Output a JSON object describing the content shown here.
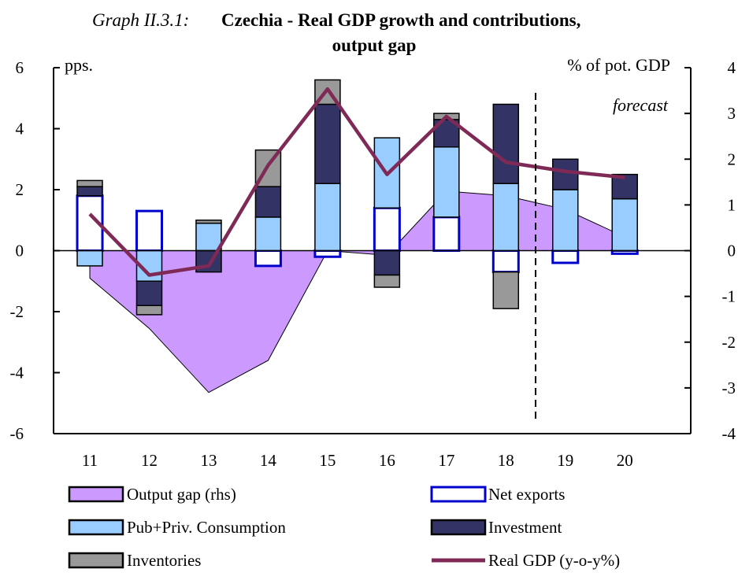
{
  "chart_data": {
    "type": "bar",
    "title_prefix": "Graph II.3.1:",
    "title_line1": "Czechia - Real GDP growth and contributions,",
    "title_line2": "output gap",
    "left_unit": "pps.",
    "right_unit": "% of pot. GDP",
    "forecast_label": "forecast",
    "categories": [
      "11",
      "12",
      "13",
      "14",
      "15",
      "16",
      "17",
      "18",
      "19",
      "20"
    ],
    "ylim_left": [
      -6,
      6
    ],
    "ylim_right": [
      -4,
      4
    ],
    "yticks_left": [
      "-6",
      "-4",
      "-2",
      "0",
      "2",
      "4",
      "6"
    ],
    "yticks_right": [
      "-4",
      "-3",
      "-2",
      "-1",
      "0",
      "1",
      "2",
      "3",
      "4"
    ],
    "forecast_after_category": "18",
    "legend": {
      "output_gap": "Output gap (rhs)",
      "net_exports": "Net exports",
      "consumption": "Pub+Priv. Consumption",
      "investment": "Investment",
      "inventories": "Inventories",
      "gdp": "Real GDP (y-o-y%)"
    },
    "colors": {
      "output_gap": "#cc99ff",
      "net_exports_border": "#0000cc",
      "consumption": "#99ccff",
      "investment": "#333366",
      "inventories": "#999999",
      "gdp": "#7f2a56"
    },
    "series": [
      {
        "key": "net_exports",
        "values": [
          1.8,
          1.3,
          0.0,
          -0.5,
          -0.2,
          1.4,
          1.1,
          -0.7,
          -0.4,
          -0.1
        ]
      },
      {
        "key": "consumption",
        "values": [
          -0.5,
          -1.0,
          0.9,
          1.1,
          2.2,
          2.3,
          2.3,
          2.2,
          2.0,
          1.7
        ]
      },
      {
        "key": "investment",
        "values": [
          0.3,
          -0.8,
          -0.7,
          1.0,
          2.6,
          -0.8,
          0.9,
          2.6,
          1.0,
          0.8
        ]
      },
      {
        "key": "inventories",
        "values": [
          0.2,
          -0.3,
          0.1,
          1.2,
          0.8,
          -0.4,
          0.2,
          -1.2,
          0.0,
          0.0
        ]
      },
      {
        "key": "gdp",
        "values": [
          1.2,
          -0.8,
          -0.5,
          2.8,
          5.3,
          2.5,
          4.4,
          2.9,
          2.6,
          2.4
        ]
      },
      {
        "key": "output_gap",
        "values": [
          -0.6,
          -1.7,
          -3.1,
          -2.4,
          0.0,
          -0.1,
          1.3,
          1.2,
          0.9,
          0.3
        ]
      }
    ]
  }
}
